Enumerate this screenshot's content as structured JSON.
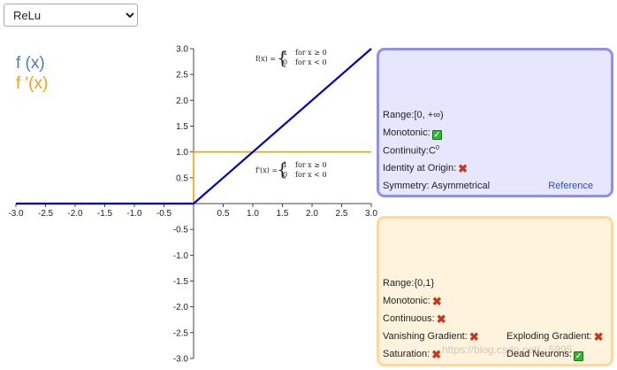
{
  "selector": {
    "selected": "ReLu"
  },
  "legend": {
    "f_label": "f (x)",
    "fp_label": "f '(x)"
  },
  "colors": {
    "f": "#0000cc",
    "fp": "#f2a20a",
    "axis": "#444444",
    "panel_f_bg": "#e6e6ff",
    "panel_f_border": "#8f8ff2",
    "panel_fp_bg": "#fff3de",
    "panel_fp_border": "#ffd79a"
  },
  "formulas": {
    "f": {
      "lhs": "f(x) =",
      "case1_expr": "x",
      "case1_cond": "for x ≥ 0",
      "case2_expr": "0",
      "case2_cond": "for x < 0"
    },
    "fp": {
      "lhs": "f'(x) =",
      "case1_expr": "1",
      "case1_cond": "for x ≥ 0",
      "case2_expr": "0",
      "case2_cond": "for x < 0"
    }
  },
  "chart_data": {
    "type": "line",
    "xlim": [
      -3,
      3
    ],
    "ylim": [
      -3,
      3
    ],
    "x_ticks": [
      "-3.0",
      "-2.5",
      "-2.0",
      "-1.5",
      "-1.0",
      "-0.5",
      "0.5",
      "1.0",
      "1.5",
      "2.0",
      "2.5",
      "3.0"
    ],
    "y_ticks": [
      "3.0",
      "2.5",
      "2.0",
      "1.5",
      "1.0",
      "0.5",
      "-0.5",
      "-1.0",
      "-1.5",
      "-2.0",
      "-2.5",
      "-3.0"
    ],
    "series": [
      {
        "x": [
          -3,
          0,
          3
        ],
        "y": [
          0,
          0,
          3
        ]
      },
      {
        "x": [
          -3,
          0,
          0,
          3
        ],
        "y": [
          0,
          0,
          1,
          1
        ]
      }
    ]
  },
  "panel_f": {
    "range_label": "Range:",
    "range_value": "[0, +∞)",
    "monotonic_label": "Monotonic:",
    "continuity_label": "Continuity:",
    "continuity_value": "C",
    "continuity_sup": "0",
    "identity_label": "Identity at Origin:",
    "symmetry_label": "Symmetry:",
    "symmetry_value": "Asymmetrical",
    "reference_label": "Reference"
  },
  "panel_fp": {
    "range_label": "Range:",
    "range_value": "{0,1}",
    "monotonic_label": "Monotonic:",
    "continuous_label": "Continuous:",
    "vanishing_label": "Vanishing Gradient:",
    "exploding_label": "Exploding Gradient:",
    "saturation_label": "Saturation:",
    "dead_label": "Dead Neurons:"
  },
  "watermark": "https://blog.csdn.net/...5995"
}
